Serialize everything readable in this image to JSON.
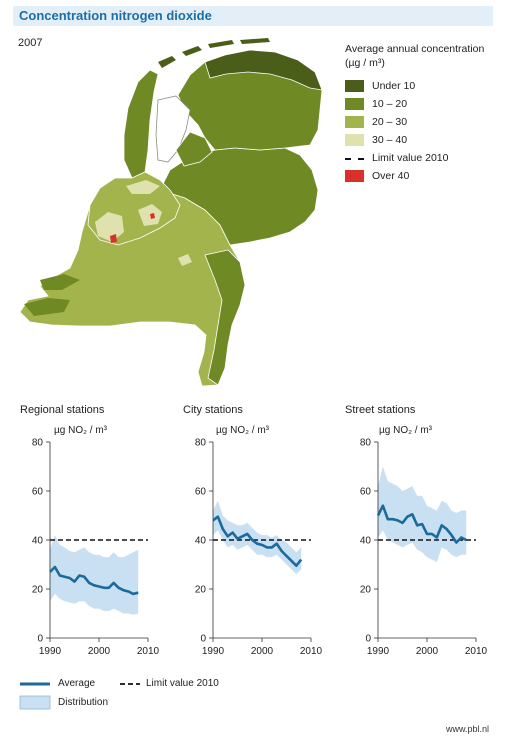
{
  "title": "Concentration nitrogen dioxide",
  "year": "2007",
  "map_legend": {
    "title_line1": "Average annual concentration",
    "title_line2": "(µg / m³)",
    "items": [
      {
        "label": "Under 10",
        "color": "#4a5e1a",
        "kind": "swatch"
      },
      {
        "label": "10 – 20",
        "color": "#6f8a24",
        "kind": "swatch"
      },
      {
        "label": "20 – 30",
        "color": "#a4b44d",
        "kind": "swatch"
      },
      {
        "label": "30 – 40",
        "color": "#dfe2ae",
        "kind": "swatch"
      },
      {
        "label": "Limit value 2010",
        "color": "#111111",
        "kind": "dash"
      },
      {
        "label": "Over 40",
        "color": "#d9312a",
        "kind": "swatch"
      }
    ]
  },
  "chart_data": [
    {
      "type": "line",
      "title": "Regional stations",
      "ylabel": "µg NO₂ / m³",
      "xlim": [
        1990,
        2010
      ],
      "ylim": [
        0,
        80
      ],
      "xticks": [
        1990,
        2000,
        2010
      ],
      "yticks": [
        0,
        20,
        40,
        60,
        80
      ],
      "limit_value": 40,
      "x": [
        1990,
        1991,
        1992,
        1993,
        1994,
        1995,
        1996,
        1997,
        1998,
        1999,
        2000,
        2001,
        2002,
        2003,
        2004,
        2005,
        2006,
        2007,
        2008
      ],
      "average": [
        27,
        29,
        25.5,
        25,
        24.5,
        23,
        25.5,
        25,
        22.5,
        21.5,
        21,
        20.5,
        20.5,
        22.5,
        20.5,
        19.5,
        19,
        18,
        18.5
      ],
      "band_upper": [
        36,
        42,
        38,
        37,
        35.5,
        35,
        36,
        37,
        35,
        34,
        34,
        33,
        33,
        35,
        33,
        33,
        34,
        35,
        36
      ],
      "band_lower": [
        15,
        18,
        16,
        15,
        14.5,
        14,
        15,
        15,
        13,
        12,
        12,
        11,
        11,
        12,
        11,
        10,
        10,
        9.5,
        10
      ]
    },
    {
      "type": "line",
      "title": "City stations",
      "ylabel": "µg NO₂ / m³",
      "xlim": [
        1990,
        2010
      ],
      "ylim": [
        0,
        80
      ],
      "xticks": [
        1990,
        2000,
        2010
      ],
      "yticks": [
        0,
        20,
        40,
        60,
        80
      ],
      "limit_value": 40,
      "x": [
        1990,
        1991,
        1992,
        1993,
        1994,
        1995,
        1996,
        1997,
        1998,
        1999,
        2000,
        2001,
        2002,
        2003,
        2004,
        2005,
        2006,
        2007,
        2008
      ],
      "average": [
        48,
        49.5,
        44.5,
        41.5,
        43,
        40.5,
        41.5,
        42.5,
        40,
        38.5,
        38,
        37,
        37,
        38.5,
        35.5,
        33.5,
        31.5,
        29.5,
        32
      ],
      "band_upper": [
        52,
        56,
        50,
        48,
        47,
        46,
        46,
        47,
        45,
        43,
        42,
        42,
        41,
        42,
        40,
        39,
        37,
        35,
        37
      ],
      "band_lower": [
        42,
        44,
        40,
        37,
        38,
        36,
        37,
        38,
        36,
        34,
        34,
        33,
        33,
        34,
        32,
        30,
        28,
        26,
        28
      ]
    },
    {
      "type": "line",
      "title": "Street stations",
      "ylabel": "µg NO₂ / m³",
      "xlim": [
        1990,
        2010
      ],
      "ylim": [
        0,
        80
      ],
      "xticks": [
        1990,
        2000,
        2010
      ],
      "yticks": [
        0,
        20,
        40,
        60,
        80
      ],
      "limit_value": 40,
      "x": [
        1990,
        1991,
        1992,
        1993,
        1994,
        1995,
        1996,
        1997,
        1998,
        1999,
        2000,
        2001,
        2002,
        2003,
        2004,
        2005,
        2006,
        2007,
        2008
      ],
      "average": [
        50,
        54,
        48.5,
        48.5,
        48,
        47,
        49.5,
        50.5,
        46,
        46.5,
        42.5,
        42.5,
        41,
        46,
        44.5,
        42,
        39,
        41,
        40
      ],
      "band_upper": [
        62,
        70,
        64,
        63,
        62,
        60,
        61,
        62,
        58,
        58,
        54,
        53,
        52,
        56,
        55,
        52,
        51,
        52,
        52
      ],
      "band_lower": [
        41,
        44,
        40,
        39,
        38,
        37,
        38,
        39,
        36,
        35,
        33,
        32,
        31,
        37,
        36,
        34,
        33,
        34,
        34
      ]
    }
  ],
  "chart_legend": {
    "average_label": "Average",
    "limit_label": "Limit value 2010",
    "distribution_label": "Distribution",
    "line_color": "#1b6a9c",
    "band_color": "#c9dff2"
  },
  "credit": "www.pbl.nl"
}
